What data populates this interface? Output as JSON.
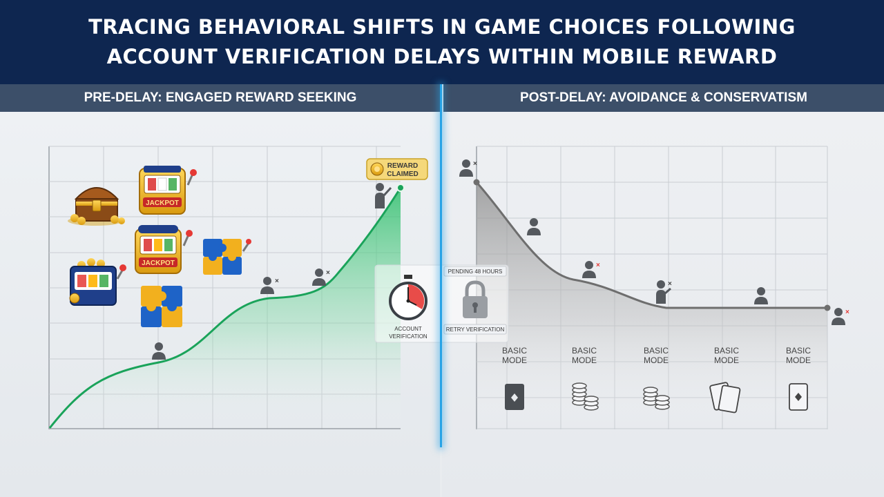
{
  "title": {
    "line1": "TRACING BEHAVIORAL SHIFTS IN GAME CHOICES FOLLOWING",
    "line2": "ACCOUNT VERIFICATION DELAYS WITHIN MOBILE REWARD"
  },
  "left_header": "PRE-DELAY: ENGAGED REWARD SEEKING",
  "right_header": "POST-DELAY: AVOIDANCE & CONSERVATISM",
  "badge_text": {
    "line1": "REWARD",
    "line2": "CLAIMED"
  },
  "jackpot_label": "JACKPOT",
  "center": {
    "timer_label_1": "ACCOUNT",
    "timer_label_2": "VERIFICATION",
    "pending": "PENDING 48 HOURS",
    "retry": "RETRY VERIFICATION"
  },
  "modes": [
    {
      "line1": "BASIC",
      "line2": "MODE",
      "icon": "card-icon"
    },
    {
      "line1": "BASIC",
      "line2": "MODE",
      "icon": "chip-stack-icon"
    },
    {
      "line1": "BASIC",
      "line2": "MODE",
      "icon": "chip-stack-icon"
    },
    {
      "line1": "BASIC",
      "line2": "MODE",
      "icon": "two-cards-icon"
    },
    {
      "line1": "BASIC",
      "line2": "MODE",
      "icon": "card-icon"
    }
  ],
  "colors": {
    "title_bg": "#0e2650",
    "header_bg": "#3c4f69",
    "divider": "#27a3e6",
    "engagement_line": "#1aa35a",
    "decline_line": "#6e6e6e",
    "gold": "#f2b01e",
    "reject_mark": "#e53935"
  },
  "chart_data": {
    "type": "area",
    "series": [
      {
        "values": [
          0,
          22,
          46,
          88
        ]
      },
      {
        "values": [
          88,
          42,
          43
        ]
      }
    ]
  }
}
